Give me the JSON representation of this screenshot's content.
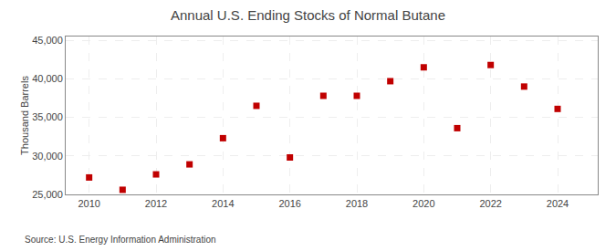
{
  "chart_data": {
    "type": "scatter",
    "title": "Annual U.S. Ending Stocks of Normal Butane",
    "ylabel": "Thousand Barrels",
    "annotations": [
      "Source: U.S. Energy Information Administration"
    ],
    "x": [
      2010,
      2011,
      2012,
      2013,
      2014,
      2015,
      2016,
      2017,
      2018,
      2019,
      2020,
      2021,
      2022,
      2023,
      2024
    ],
    "values": [
      27200,
      25600,
      27600,
      28900,
      32300,
      36500,
      29800,
      37800,
      37800,
      39700,
      41500,
      33600,
      41800,
      39000,
      36100
    ],
    "color": "#c00000",
    "marker": "square",
    "xlim": [
      2009.3,
      2025.2
    ],
    "ylim": [
      25000,
      45500
    ],
    "xticks": [
      2010,
      2012,
      2014,
      2016,
      2018,
      2020,
      2022,
      2024
    ],
    "yticks": [
      {
        "value": 25000,
        "label": "25,000"
      },
      {
        "value": 30000,
        "label": "30,000"
      },
      {
        "value": 35000,
        "label": "35,000"
      },
      {
        "value": 40000,
        "label": "40,000"
      },
      {
        "value": 45000,
        "label": "45,000"
      }
    ],
    "grid": true
  }
}
